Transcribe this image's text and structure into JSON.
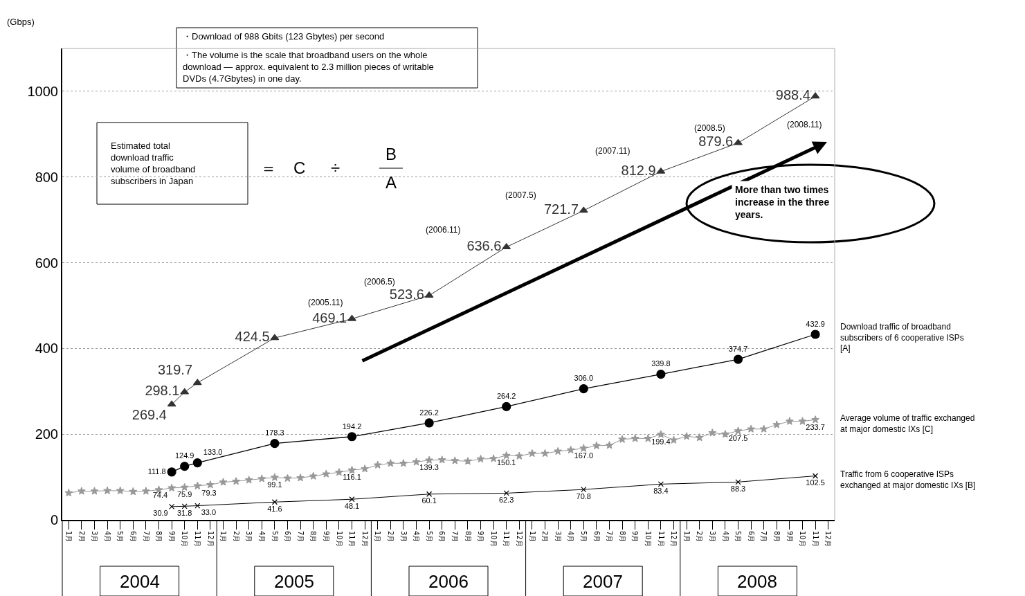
{
  "chart_data": {
    "type": "line",
    "ylabel": "(Gbps)",
    "categories": [
      "1月",
      "2月",
      "3月",
      "4月",
      "5月",
      "6月",
      "7月",
      "8月",
      "9月",
      "10月",
      "11月",
      "12月",
      "1月",
      "2月",
      "3月",
      "4月",
      "5月",
      "6月",
      "7月",
      "8月",
      "9月",
      "10月",
      "11月",
      "12月",
      "1月",
      "2月",
      "3月",
      "4月",
      "5月",
      "6月",
      "7月",
      "8月",
      "9月",
      "10月",
      "11月",
      "12月",
      "1月",
      "2月",
      "3月",
      "4月",
      "5月",
      "6月",
      "7月",
      "8月",
      "9月",
      "10月",
      "11月",
      "12月",
      "1月",
      "2月",
      "3月",
      "4月",
      "5月",
      "6月",
      "7月",
      "8月",
      "9月",
      "10月",
      "11月",
      "12月"
    ],
    "ylim": [
      0,
      1100
    ],
    "yticks": [
      0,
      200,
      400,
      600,
      800,
      1000
    ],
    "grid": "y",
    "legend": false,
    "line_style": "solid",
    "series": [
      {
        "color": "#333333",
        "marker": "triangle",
        "values": [
          null,
          null,
          null,
          null,
          null,
          null,
          null,
          null,
          269.4,
          298.1,
          319.7,
          null,
          null,
          null,
          null,
          null,
          424.5,
          null,
          null,
          null,
          null,
          null,
          469.1,
          null,
          null,
          null,
          null,
          null,
          523.6,
          null,
          null,
          null,
          null,
          null,
          636.6,
          null,
          null,
          null,
          null,
          null,
          721.7,
          null,
          null,
          null,
          null,
          null,
          812.9,
          null,
          null,
          null,
          null,
          null,
          879.6,
          null,
          null,
          null,
          null,
          null,
          988.4,
          null
        ],
        "value_labels": [
          null,
          null,
          null,
          null,
          null,
          null,
          null,
          null,
          "269.4",
          "298.1",
          "319.7",
          null,
          null,
          null,
          null,
          null,
          "424.5",
          null,
          null,
          null,
          null,
          null,
          "469.1",
          null,
          null,
          null,
          null,
          null,
          "523.6",
          null,
          null,
          null,
          null,
          null,
          "636.6",
          null,
          null,
          null,
          null,
          null,
          "721.7",
          null,
          null,
          null,
          null,
          null,
          "812.9",
          null,
          null,
          null,
          null,
          null,
          "879.6",
          null,
          null,
          null,
          null,
          null,
          "988.4",
          null
        ]
      },
      {
        "name": "Download traffic of broadband subscribers of 6 cooperative ISPs [A]",
        "color": "#000000",
        "marker": "circle",
        "values": [
          null,
          null,
          null,
          null,
          null,
          null,
          null,
          null,
          111.8,
          124.9,
          133.0,
          null,
          null,
          null,
          null,
          null,
          178.3,
          null,
          null,
          null,
          null,
          null,
          194.2,
          null,
          null,
          null,
          null,
          null,
          226.2,
          null,
          null,
          null,
          null,
          null,
          264.2,
          null,
          null,
          null,
          null,
          null,
          306.0,
          null,
          null,
          null,
          null,
          null,
          339.8,
          null,
          null,
          null,
          null,
          null,
          374.7,
          null,
          null,
          null,
          null,
          null,
          432.9,
          null
        ],
        "value_labels": [
          null,
          null,
          null,
          null,
          null,
          null,
          null,
          null,
          "111.8",
          "124.9",
          "133.0",
          null,
          null,
          null,
          null,
          null,
          "178.3",
          null,
          null,
          null,
          null,
          null,
          "194.2",
          null,
          null,
          null,
          null,
          null,
          "226.2",
          null,
          null,
          null,
          null,
          null,
          "264.2",
          null,
          null,
          null,
          null,
          null,
          "306.0",
          null,
          null,
          null,
          null,
          null,
          "339.8",
          null,
          null,
          null,
          null,
          null,
          "374.7",
          null,
          null,
          null,
          null,
          null,
          "432.9",
          null
        ]
      },
      {
        "name": "Average volume of traffic exchanged at major domestic IXs [C]",
        "color": "#999999",
        "marker": "star",
        "values": [
          63,
          67,
          67,
          68,
          68,
          66,
          67,
          70,
          74.4,
          75.9,
          79.3,
          82,
          88,
          90,
          93,
          96,
          99.1,
          97,
          98,
          102,
          107,
          111,
          116.1,
          119,
          128,
          132,
          132,
          135,
          139.3,
          140,
          138,
          137,
          142,
          143,
          150.1,
          149,
          155,
          155,
          160,
          163,
          167.0,
          173,
          174,
          188,
          190,
          190,
          199.4,
          186,
          195,
          192,
          203,
          200,
          207.5,
          212,
          212,
          222,
          230,
          230,
          233.7,
          null
        ],
        "value_labels": [
          null,
          null,
          null,
          null,
          null,
          null,
          null,
          null,
          "74.4",
          "75.9",
          "79.3",
          null,
          null,
          null,
          null,
          null,
          "99.1",
          null,
          null,
          null,
          null,
          null,
          "116.1",
          null,
          null,
          null,
          null,
          null,
          "139.3",
          null,
          null,
          null,
          null,
          null,
          "150.1",
          null,
          null,
          null,
          null,
          null,
          "167.0",
          null,
          null,
          null,
          null,
          null,
          "199.4",
          null,
          null,
          null,
          null,
          null,
          "207.5",
          null,
          null,
          null,
          null,
          null,
          "233.7",
          null
        ]
      },
      {
        "name": "Traffic from 6 cooperative ISPs exchanged at major domestic IXs [B]",
        "color": "#000000",
        "marker": "cross",
        "values": [
          null,
          null,
          null,
          null,
          null,
          null,
          null,
          null,
          30.9,
          31.8,
          33.0,
          null,
          null,
          null,
          null,
          null,
          41.6,
          null,
          null,
          null,
          null,
          null,
          48.1,
          null,
          null,
          null,
          null,
          null,
          60.1,
          null,
          null,
          null,
          null,
          null,
          62.3,
          null,
          null,
          null,
          null,
          null,
          70.8,
          null,
          null,
          null,
          null,
          null,
          83.4,
          null,
          null,
          null,
          null,
          null,
          88.3,
          null,
          null,
          null,
          null,
          null,
          102.5,
          null
        ],
        "value_labels": [
          null,
          null,
          null,
          null,
          null,
          null,
          null,
          null,
          "30.9",
          "31.8",
          "33.0",
          null,
          null,
          null,
          null,
          null,
          "41.6",
          null,
          null,
          null,
          null,
          null,
          "48.1",
          null,
          null,
          null,
          null,
          null,
          "60.1",
          null,
          null,
          null,
          null,
          null,
          "62.3",
          null,
          null,
          null,
          null,
          null,
          "70.8",
          null,
          null,
          null,
          null,
          null,
          "83.4",
          null,
          null,
          null,
          null,
          null,
          "88.3",
          null,
          null,
          null,
          null,
          null,
          "102.5",
          null
        ]
      }
    ],
    "annotations": [
      "・Download of 988 Gbits (123 Gbytes) per second",
      "・The volume is the scale that broadband users on the whole download — approx. equivalent to 2.3 million pieces of writable DVDs (4.7Gbytes) in one day.",
      "Estimated total download traffic volume of broadband subscribers in Japan",
      "＝",
      "C",
      "÷",
      "B",
      "A",
      "More than two times increase in the three years.",
      "(2005.11)",
      "(2006.5)",
      "(2006.11)",
      "(2007.5)",
      "(2007.11)",
      "(2008.5)",
      "(2008.11)",
      "2004",
      "2005",
      "2006",
      "2007",
      "2008"
    ]
  }
}
